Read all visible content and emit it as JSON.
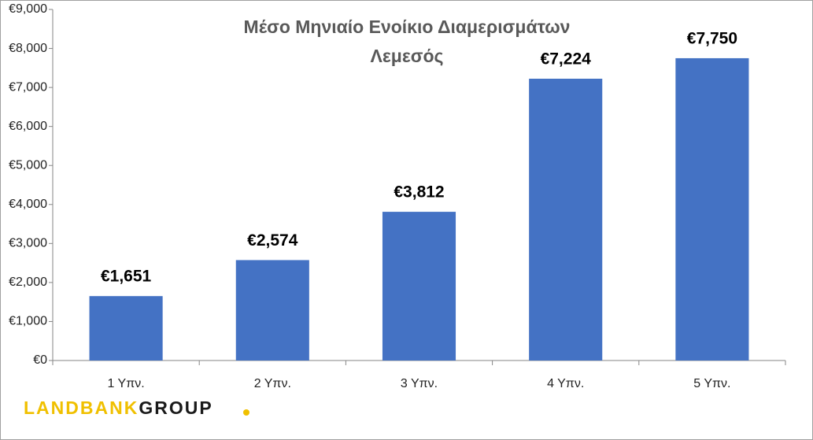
{
  "chart_data": {
    "type": "bar",
    "title": [
      "Μέσο Μηνιαίο Ενοίκιο Διαμερισμάτων",
      "Λεμεσός"
    ],
    "categories": [
      "1 Υπν.",
      "2 Υπν.",
      "3 Υπν.",
      "4 Υπν.",
      "5 Υπν."
    ],
    "values": [
      1651,
      2574,
      3812,
      7224,
      7750
    ],
    "value_labels": [
      "€1,651",
      "€2,574",
      "€3,812",
      "€7,224",
      "€7,750"
    ],
    "color": "#4472c4",
    "ylim": [
      0,
      9000
    ],
    "yticks": [
      {
        "value": 0,
        "label": "€0"
      },
      {
        "value": 1000,
        "label": "€1,000"
      },
      {
        "value": 2000,
        "label": "€2,000"
      },
      {
        "value": 3000,
        "label": "€3,000"
      },
      {
        "value": 4000,
        "label": "€4,000"
      },
      {
        "value": 5000,
        "label": "€5,000"
      },
      {
        "value": 6000,
        "label": "€6,000"
      },
      {
        "value": 7000,
        "label": "€7,000"
      },
      {
        "value": 8000,
        "label": "€8,000"
      },
      {
        "value": 9000,
        "label": "€9,000"
      }
    ],
    "grid": false
  },
  "logo": [
    "LANDBANK",
    "GROUP"
  ]
}
